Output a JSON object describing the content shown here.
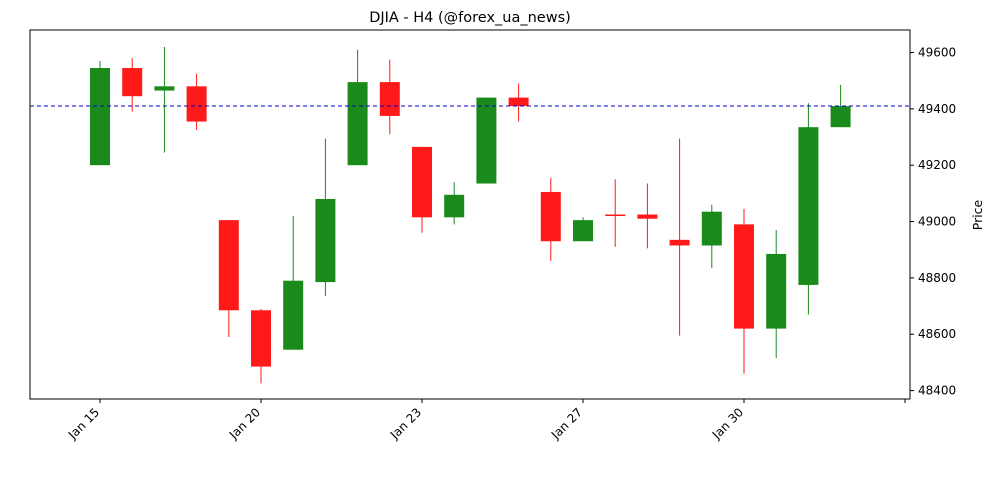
{
  "chart_data": {
    "type": "candlestick",
    "title": "DJIA - H4 (@forex_ua_news)",
    "xlabel": "",
    "ylabel": "Price",
    "y_axis_side": "right",
    "ylim": [
      48370,
      49680
    ],
    "y_ticks": [
      48400,
      48600,
      48800,
      49000,
      49200,
      49400,
      49600
    ],
    "x_tick_labels": [
      {
        "index": 0,
        "label": "Jan 15"
      },
      {
        "index": 5,
        "label": "Jan 20"
      },
      {
        "index": 10,
        "label": "Jan 23"
      },
      {
        "index": 15,
        "label": "Jan 27"
      },
      {
        "index": 20,
        "label": "Jan 30"
      },
      {
        "index": 25,
        "label": ""
      }
    ],
    "reference_line": {
      "value": 49410,
      "style": "dashed",
      "color": "#0000cc"
    },
    "colors": {
      "up": "#1a8a1a",
      "down": "#ff1a1a"
    },
    "grid": false,
    "legend": "none",
    "candles": [
      {
        "open": 49200,
        "high": 49570,
        "low": 49200,
        "close": 49545
      },
      {
        "open": 49545,
        "high": 49580,
        "low": 49390,
        "close": 49445
      },
      {
        "open": 49465,
        "high": 49620,
        "low": 49245,
        "close": 49480
      },
      {
        "open": 49480,
        "high": 49525,
        "low": 49325,
        "close": 49355
      },
      {
        "open": 49005,
        "high": 49005,
        "low": 48590,
        "close": 48685
      },
      {
        "open": 48685,
        "high": 48690,
        "low": 48425,
        "close": 48485
      },
      {
        "open": 48545,
        "high": 49020,
        "low": 48545,
        "close": 48790
      },
      {
        "open": 48785,
        "high": 49295,
        "low": 48735,
        "close": 49080
      },
      {
        "open": 49200,
        "high": 49610,
        "low": 49200,
        "close": 49495
      },
      {
        "open": 49495,
        "high": 49575,
        "low": 49310,
        "close": 49375
      },
      {
        "open": 49265,
        "high": 49265,
        "low": 48960,
        "close": 49015
      },
      {
        "open": 49015,
        "high": 49140,
        "low": 48990,
        "close": 49095
      },
      {
        "open": 49135,
        "high": 49440,
        "low": 49135,
        "close": 49440
      },
      {
        "open": 49440,
        "high": 49490,
        "low": 49355,
        "close": 49410
      },
      {
        "open": 49105,
        "high": 49155,
        "low": 48860,
        "close": 48930
      },
      {
        "open": 48930,
        "high": 49015,
        "low": 48930,
        "close": 49005
      },
      {
        "open": 49025,
        "high": 49150,
        "low": 48910,
        "close": 49020
      },
      {
        "open": 49025,
        "high": 49135,
        "low": 48905,
        "close": 49010
      },
      {
        "open": 48935,
        "high": 49295,
        "low": 48595,
        "close": 48915
      },
      {
        "open": 48915,
        "high": 49060,
        "low": 48835,
        "close": 49035
      },
      {
        "open": 48990,
        "high": 49045,
        "low": 48460,
        "close": 48620
      },
      {
        "open": 48620,
        "high": 48970,
        "low": 48515,
        "close": 48885
      },
      {
        "open": 48775,
        "high": 49420,
        "low": 48670,
        "close": 49335
      },
      {
        "open": 49335,
        "high": 49485,
        "low": 49335,
        "close": 49410
      }
    ]
  }
}
